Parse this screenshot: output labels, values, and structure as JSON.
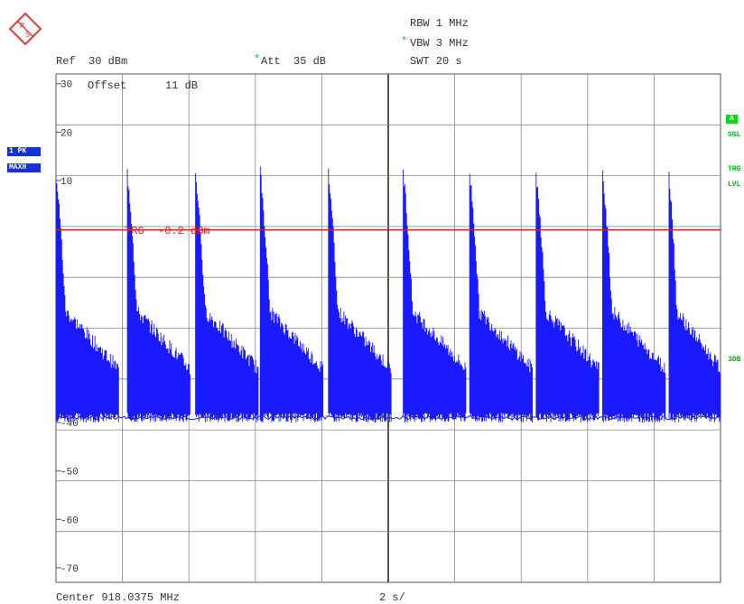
{
  "header": {
    "rbw": "RBW 1 MHz",
    "vbw": "VBW 3 MHz",
    "vbw_star": "*",
    "swt": "SWT 20 s",
    "ref": "Ref  30 dBm",
    "att": "Att  35 dB",
    "att_star": "*"
  },
  "badges": {
    "trace": "1 PK",
    "mode": "MAXH"
  },
  "side_labels": {
    "a": "A",
    "sgl": "SGL",
    "trg": "TRG",
    "lvl": "LVL",
    "threeDB": "3DB"
  },
  "footer": {
    "center": "Center 918.0375 MHz",
    "span": "2 s/"
  },
  "colors": {
    "trace": "#1a1aff",
    "trigger_line": "#d02020",
    "grid": "#888888",
    "badge": "#1530d8",
    "side": "#12b01e"
  },
  "chart_data": {
    "type": "line",
    "title": "",
    "xlabel": "",
    "ylabel": "",
    "offset_label": "Offset",
    "offset_value": "11 dB",
    "ylim": [
      -73,
      32
    ],
    "y_ticks": [
      30,
      20,
      10,
      -40,
      -50,
      -60,
      -70
    ],
    "x_divisions": 10,
    "x_unit": "s",
    "x_range": [
      0,
      20
    ],
    "grid": true,
    "trigger": {
      "label": "TRG",
      "value": "-0.2 dBm",
      "level": -0.2
    },
    "noise_floor": -39,
    "series": [
      {
        "values_note_peaks_s": [
          0.0,
          2.15,
          4.2,
          6.15,
          8.2,
          10.45,
          12.45,
          14.45,
          16.45,
          18.45
        ],
        "burst_peak_dbm": 11.5,
        "burst_shoulder_dbm": -17,
        "burst_end_dbm": -29,
        "burst_duration_s": 1.9
      }
    ]
  }
}
